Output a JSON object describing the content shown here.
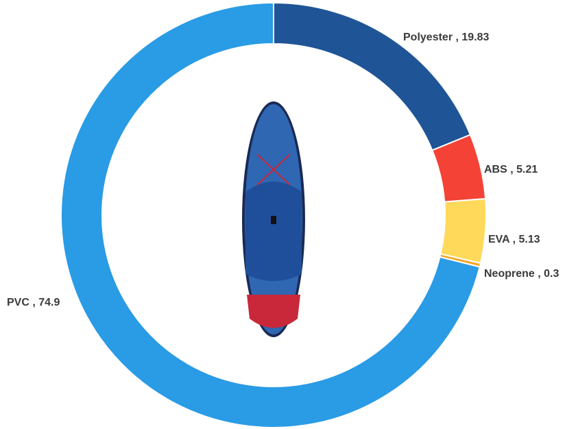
{
  "chart_data": {
    "type": "donut",
    "categories": [
      "Polyester",
      "ABS",
      "EVA",
      "Neoprene",
      "PVC"
    ],
    "values": [
      19.83,
      5.21,
      5.13,
      0.3,
      74.9
    ],
    "colors": [
      "#1f5596",
      "#f44336",
      "#ffd95a",
      "#f5a623",
      "#2a9be5"
    ],
    "label_separator": " , "
  }
}
